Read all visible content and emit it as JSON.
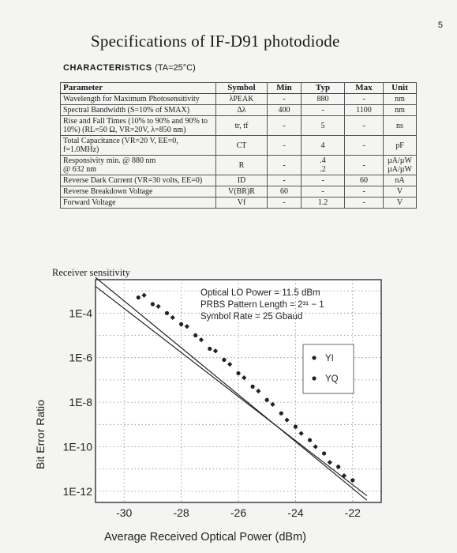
{
  "page_number": "5",
  "title": "Specifications of IF-D91 photodiode",
  "characteristics": {
    "heading": "CHARACTERISTICS",
    "condition": "(TA=25°C)"
  },
  "spec_table": {
    "headers": [
      "Parameter",
      "Symbol",
      "Min",
      "Typ",
      "Max",
      "Unit"
    ],
    "rows": [
      {
        "parameter": "Wavelength for Maximum Photosensitivity",
        "symbol": "λPEAK",
        "min": "-",
        "typ": "880",
        "max": "-",
        "unit": "nm"
      },
      {
        "parameter": "Spectral Bandwidth (S=10% of SMAX)",
        "symbol": "Δλ",
        "min": "400",
        "typ": "-",
        "max": "1100",
        "unit": "nm"
      },
      {
        "parameter": "Rise and Fall Times (10% to 90% and 90% to 10%) (RL=50 Ω, VR=20V, λ=850 nm)",
        "symbol": "tr, tf",
        "min": "-",
        "typ": "5",
        "max": "-",
        "unit": "ns"
      },
      {
        "parameter": "Total Capacitance (VR=20 V, EE=0, f=1.0MHz)",
        "symbol": "CT",
        "min": "-",
        "typ": "4",
        "max": "-",
        "unit": "pF"
      },
      {
        "parameter": "Responsivity min. @ 880 nm\n@ 632 nm",
        "symbol": "R",
        "min": "-",
        "typ": ".4\n.2",
        "max": "-",
        "unit": "µA/µW\nµA/µW"
      },
      {
        "parameter": "Reverse Dark Current (VR=30 volts, EE=0)",
        "symbol": "ID",
        "min": "-",
        "typ": "-",
        "max": "60",
        "unit": "nA"
      },
      {
        "parameter": "Reverse Breakdown Voltage",
        "symbol": "V(BR)R",
        "min": "60",
        "typ": "-",
        "max": "-",
        "unit": "V"
      },
      {
        "parameter": "Forward Voltage",
        "symbol": "Vf",
        "min": "-",
        "typ": "1.2",
        "max": "-",
        "unit": "V"
      }
    ]
  },
  "sensitivity_label": "Receiver sensitivity",
  "chart_data": {
    "type": "scatter",
    "annotation": [
      "Optical LO Power = 11.5 dBm",
      "PRBS Pattern Length = 2³¹ − 1",
      "Symbol Rate = 25 Gbaud"
    ],
    "xlabel": "Average Received Optical Power (dBm)",
    "ylabel": "Bit Error Ratio",
    "x_ticks": [
      "-30",
      "-28",
      "-26",
      "-24",
      "-22"
    ],
    "y_ticks": [
      "1E-4",
      "1E-6",
      "1E-8",
      "1E-10",
      "1E-12"
    ],
    "xlim": [
      -31,
      -21
    ],
    "ylim_exponent": [
      -12.5,
      -2.5
    ],
    "legend": [
      "YI",
      "YQ"
    ],
    "legend_position": "right",
    "series": [
      {
        "name": "YI",
        "x": [
          -29.5,
          -29.0,
          -28.5,
          -28.0,
          -27.5,
          -27.0,
          -26.5,
          -26.0,
          -25.5,
          -25.0,
          -24.5,
          -24.0,
          -23.5,
          -23.0,
          -22.5,
          -22.0
        ],
        "log_y": [
          -3.3,
          -3.6,
          -4.0,
          -4.5,
          -5.0,
          -5.6,
          -6.1,
          -6.7,
          -7.3,
          -7.9,
          -8.5,
          -9.1,
          -9.7,
          -10.3,
          -10.9,
          -11.5
        ]
      },
      {
        "name": "YQ",
        "x": [
          -29.3,
          -28.8,
          -28.3,
          -27.8,
          -27.3,
          -26.8,
          -26.3,
          -25.8,
          -25.3,
          -24.8,
          -24.3,
          -23.8,
          -23.3,
          -22.8,
          -22.3
        ],
        "log_y": [
          -3.2,
          -3.7,
          -4.2,
          -4.6,
          -5.2,
          -5.7,
          -6.3,
          -6.9,
          -7.5,
          -8.1,
          -8.8,
          -9.4,
          -10.0,
          -10.7,
          -11.3
        ]
      }
    ],
    "fit_lines": [
      {
        "x": [
          -31,
          -21.5
        ],
        "log_y": [
          -2.4,
          -12.4
        ]
      },
      {
        "x": [
          -31,
          -21.5
        ],
        "log_y": [
          -2.8,
          -12.2
        ]
      }
    ]
  }
}
